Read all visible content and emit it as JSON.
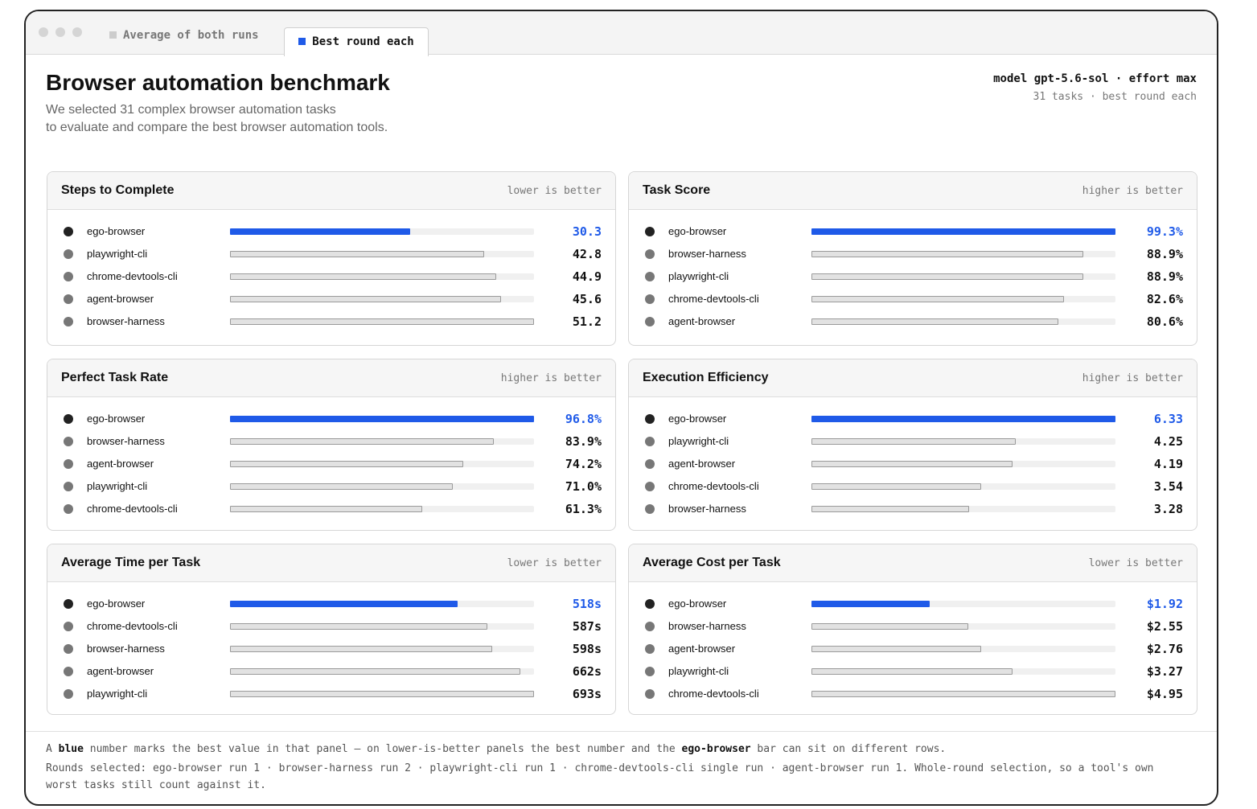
{
  "window": {
    "tabs": [
      "Average of both runs",
      "Best round each"
    ]
  },
  "header": {
    "title": "Browser automation benchmark",
    "subtitle": [
      "We selected 31 complex browser automation tasks",
      "to evaluate and compare the best browser automation tools."
    ],
    "meta": [
      "model gpt-5.6-sol · effort max",
      "31 tasks · best round each"
    ]
  },
  "chart_data": [
    {
      "type": "bar",
      "orientation": "horizontal",
      "title": "Steps to Complete",
      "note": "lower is better",
      "categories": [
        "ego-browser",
        "playwright-cli",
        "chrome-devtools-cli",
        "agent-browser",
        "browser-harness"
      ],
      "values": [
        30.3,
        42.8,
        44.9,
        45.6,
        51.2
      ],
      "xlim": [
        0,
        51.2
      ],
      "colors": [
        "#1f5ae8",
        "#e2e2e2",
        "#e2e2e2",
        "#e2e2e2",
        "#e2e2e2"
      ],
      "label_colors": [
        "#1f5ae8",
        "#111111",
        "#111111",
        "#111111",
        "#111111"
      ]
    },
    {
      "type": "bar",
      "orientation": "horizontal",
      "title": "Task Score",
      "note": "higher is better",
      "categories": [
        "ego-browser",
        "browser-harness",
        "playwright-cli",
        "chrome-devtools-cli",
        "agent-browser"
      ],
      "values": [
        99.3,
        88.9,
        88.9,
        82.6,
        80.6
      ],
      "value_labels": [
        "99.3%",
        "88.9%",
        "88.9%",
        "82.6%",
        "80.6%"
      ],
      "xlim": [
        0,
        99.3
      ],
      "colors": [
        "#1f5ae8",
        "#e2e2e2",
        "#e2e2e2",
        "#e2e2e2",
        "#e2e2e2"
      ],
      "label_colors": [
        "#1f5ae8",
        "#111111",
        "#111111",
        "#111111",
        "#111111"
      ]
    },
    {
      "type": "bar",
      "orientation": "horizontal",
      "title": "Perfect Task Rate",
      "note": "higher is better",
      "categories": [
        "ego-browser",
        "browser-harness",
        "agent-browser",
        "playwright-cli",
        "chrome-devtools-cli"
      ],
      "values": [
        96.8,
        83.9,
        74.2,
        71.0,
        61.3
      ],
      "value_labels": [
        "96.8%",
        "83.9%",
        "74.2%",
        "71.0%",
        "61.3%"
      ],
      "xlim": [
        0,
        96.8
      ],
      "colors": [
        "#1f5ae8",
        "#e2e2e2",
        "#e2e2e2",
        "#e2e2e2",
        "#e2e2e2"
      ],
      "label_colors": [
        "#1f5ae8",
        "#111111",
        "#111111",
        "#111111",
        "#111111"
      ]
    },
    {
      "type": "bar",
      "orientation": "horizontal",
      "title": "Execution Efficiency",
      "note": "higher is better",
      "categories": [
        "ego-browser",
        "playwright-cli",
        "agent-browser",
        "chrome-devtools-cli",
        "browser-harness"
      ],
      "values": [
        6.33,
        4.25,
        4.19,
        3.54,
        3.28
      ],
      "xlim": [
        0,
        6.33
      ],
      "colors": [
        "#1f5ae8",
        "#e2e2e2",
        "#e2e2e2",
        "#e2e2e2",
        "#e2e2e2"
      ],
      "label_colors": [
        "#1f5ae8",
        "#111111",
        "#111111",
        "#111111",
        "#111111"
      ]
    },
    {
      "type": "bar",
      "orientation": "horizontal",
      "title": "Average Time per Task",
      "note": "lower is better",
      "categories": [
        "ego-browser",
        "chrome-devtools-cli",
        "browser-harness",
        "agent-browser",
        "playwright-cli"
      ],
      "values": [
        518,
        587,
        598,
        662,
        693
      ],
      "value_labels": [
        "518s",
        "587s",
        "598s",
        "662s",
        "693s"
      ],
      "xlim": [
        0,
        693
      ],
      "colors": [
        "#1f5ae8",
        "#e2e2e2",
        "#e2e2e2",
        "#e2e2e2",
        "#e2e2e2"
      ],
      "label_colors": [
        "#1f5ae8",
        "#111111",
        "#111111",
        "#111111",
        "#111111"
      ]
    },
    {
      "type": "bar",
      "orientation": "horizontal",
      "title": "Average Cost per Task",
      "note": "lower is better",
      "categories": [
        "ego-browser",
        "browser-harness",
        "agent-browser",
        "playwright-cli",
        "chrome-devtools-cli"
      ],
      "values": [
        1.92,
        2.55,
        2.76,
        3.27,
        4.95
      ],
      "value_labels": [
        "$1.92",
        "$2.55",
        "$2.76",
        "$3.27",
        "$4.95"
      ],
      "xlim": [
        0,
        4.95
      ],
      "colors": [
        "#1f5ae8",
        "#e2e2e2",
        "#e2e2e2",
        "#e2e2e2",
        "#e2e2e2"
      ],
      "label_colors": [
        "#1f5ae8",
        "#111111",
        "#111111",
        "#111111",
        "#111111"
      ]
    }
  ],
  "footer": {
    "note": [
      "A ",
      "blue",
      " number marks the best value in that panel — on lower-is-better panels the best number and the ",
      "ego-browser",
      " bar can sit on different rows."
    ],
    "rounds": "Rounds selected: ego-browser run 1 · browser-harness run 2 · playwright-cli run 1 · chrome-devtools-cli single run · agent-browser run 1. Whole-round selection, so a tool's own worst tasks still count against it."
  }
}
